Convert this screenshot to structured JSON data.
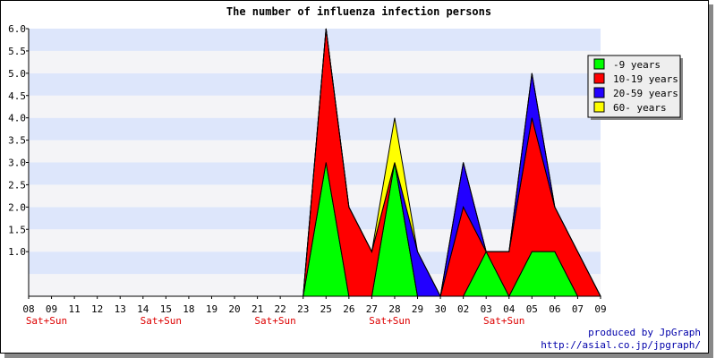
{
  "chart_data": {
    "type": "area",
    "stacked": true,
    "title": "The number of influenza infection persons",
    "categories": [
      "08",
      "09",
      "11",
      "12",
      "13",
      "14",
      "15",
      "18",
      "19",
      "20",
      "21",
      "22",
      "23",
      "25",
      "26",
      "27",
      "28",
      "29",
      "30",
      "02",
      "03",
      "04",
      "05",
      "06",
      "07",
      "09"
    ],
    "weekend_label": "Sat+Sun",
    "weekend_indices": [
      0,
      5,
      10,
      15,
      20
    ],
    "ylim": [
      0,
      6
    ],
    "yticks": [
      "6.0",
      "5.5",
      "5.0",
      "4.5",
      "4.0",
      "3.5",
      "3.0",
      "2.5",
      "2.0",
      "1.5",
      "1.0"
    ],
    "grid": "horizontal bands",
    "legend_position": "right",
    "series": [
      {
        "name": "-9 years",
        "color": "#00ff00",
        "values": [
          0,
          0,
          0,
          0,
          0,
          0,
          0,
          0,
          0,
          0,
          0,
          0,
          0,
          3,
          0,
          0,
          3,
          0,
          0,
          0,
          1,
          0,
          1,
          1,
          0,
          0
        ]
      },
      {
        "name": "10-19 years",
        "color": "#ff0000",
        "values": [
          0,
          0,
          0,
          0,
          0,
          0,
          0,
          0,
          0,
          0,
          0,
          0,
          0,
          3,
          2,
          1,
          0,
          0,
          0,
          2,
          0,
          1,
          3,
          1,
          1,
          0
        ]
      },
      {
        "name": "20-59 years",
        "color": "#2200ff",
        "values": [
          0,
          0,
          0,
          0,
          0,
          0,
          0,
          0,
          0,
          0,
          0,
          0,
          0,
          0,
          0,
          0,
          0,
          1,
          0,
          1,
          0,
          0,
          1,
          0,
          0,
          0
        ]
      },
      {
        "name": "60- years",
        "color": "#ffff00",
        "values": [
          0,
          0,
          0,
          0,
          0,
          0,
          0,
          0,
          0,
          0,
          0,
          0,
          0,
          0,
          0,
          0,
          1,
          0,
          0,
          0,
          0,
          0,
          0,
          0,
          0,
          0
        ]
      }
    ]
  },
  "credits": {
    "line1": "produced by JpGraph",
    "line2": "http://asial.co.jp/jpgraph/"
  }
}
